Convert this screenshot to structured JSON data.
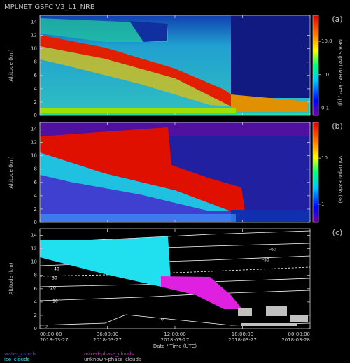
{
  "title": "MPLNET GSFC V3_L1_NRB",
  "chart_data": [
    {
      "type": "heatmap",
      "panel": "(a)",
      "ylabel": "Altitude (km)",
      "ylim": [
        0,
        15
      ],
      "yticks": [
        0,
        2,
        4,
        6,
        8,
        10,
        12,
        14
      ],
      "colorbar_label": "NRB Signal (MHz · km² / μJ)",
      "colorbar_log": true,
      "clim": [
        0.06,
        60
      ],
      "colorbar_ticks": [
        0.1,
        {
          "value": 1,
          "label": "1.0"
        },
        {
          "value": 10,
          "label": "10.0"
        }
      ]
    },
    {
      "type": "heatmap",
      "panel": "(b)",
      "ylabel": "Altitude (km)",
      "ylim": [
        0,
        15
      ],
      "yticks": [
        0,
        2,
        4,
        6,
        8,
        10,
        12,
        14
      ],
      "colorbar_label": "Vol Depol Ratio (%)",
      "colorbar_log": true,
      "clim": [
        0.4,
        60
      ],
      "colorbar_ticks": [
        1,
        10
      ]
    },
    {
      "type": "heatmap",
      "panel": "(c)",
      "ylabel": "Altitude (km)",
      "ylim": [
        0,
        15
      ],
      "yticks": [
        0,
        2,
        4,
        6,
        8,
        10,
        12,
        14
      ],
      "xlabel": "Date / Time (UTC)",
      "xlim": [
        0,
        24
      ],
      "xticks": [
        {
          "value": 0,
          "label": "00:00:00"
        },
        {
          "value": 6,
          "label": "06:00:00"
        },
        {
          "value": 12,
          "label": "12:00:00"
        },
        {
          "value": 18,
          "label": "18:00:00"
        },
        {
          "value": 24,
          "label": "00:00:00"
        }
      ],
      "xtick_dates": [
        "2018-03-27",
        "2018-03-27",
        "2018-03-27",
        "2018-03-27",
        "2018-03-28"
      ],
      "contour_labels": [
        -60,
        -50,
        -40,
        -30,
        -20,
        -10,
        0,
        0
      ],
      "legend": [
        {
          "name": "water_clouds",
          "color": "#6a3fb0"
        },
        {
          "name": "mixed-phase_clouds",
          "color": "#e020e0"
        },
        {
          "name": "ice_clouds",
          "color": "#20e0f0"
        },
        {
          "name": "unknown-phase_clouds",
          "color": "#c0c0c0"
        }
      ]
    }
  ]
}
